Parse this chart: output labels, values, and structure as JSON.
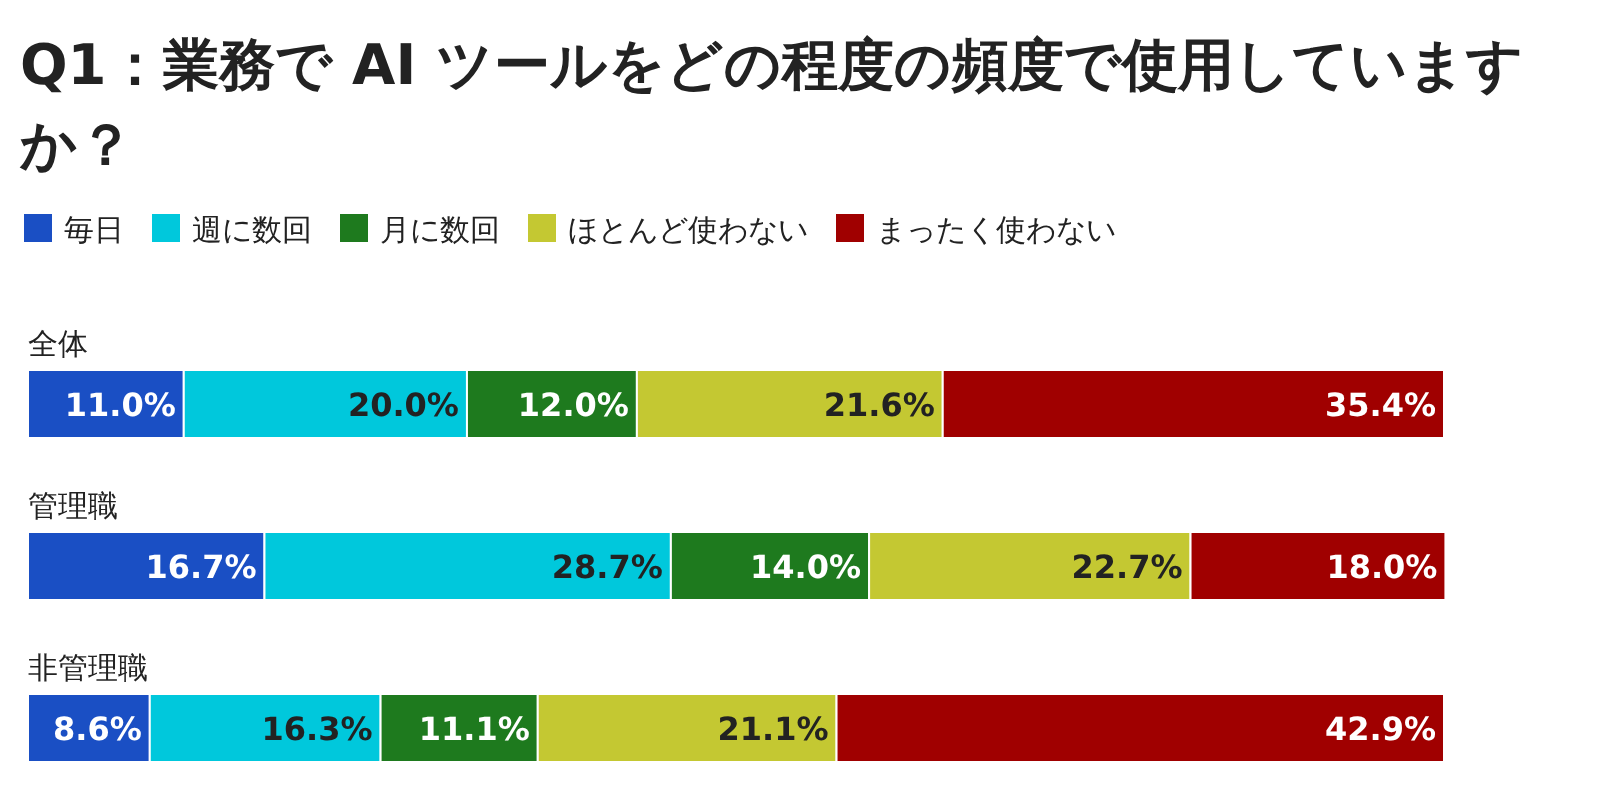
{
  "chart_data": {
    "type": "bar",
    "orientation": "horizontal",
    "stacked": true,
    "title": "Q1：業務で AI ツールをどの程度の頻度で使用していますか？",
    "categories": [
      "全体",
      "管理職",
      "非管理職"
    ],
    "series": [
      {
        "name": "毎日",
        "color": "#1a4fc4",
        "values": [
          11.0,
          16.7,
          8.6
        ],
        "value_labels": [
          "11.0%",
          "16.7%",
          "8.6%"
        ]
      },
      {
        "name": "週に数回",
        "color": "#00c8dc",
        "values": [
          20.0,
          28.7,
          16.3
        ],
        "value_labels": [
          "20.0%",
          "28.7%",
          "16.3%"
        ]
      },
      {
        "name": "月に数回",
        "color": "#1e7a1e",
        "values": [
          12.0,
          14.0,
          11.1
        ],
        "value_labels": [
          "12.0%",
          "14.0%",
          "11.1%"
        ]
      },
      {
        "name": "ほとんど使わない",
        "color": "#c4c832",
        "values": [
          21.6,
          22.7,
          21.1
        ],
        "value_labels": [
          "21.6%",
          "22.7%",
          "21.1%"
        ]
      },
      {
        "name": "まったく使わない",
        "color": "#a00000",
        "values": [
          35.4,
          18.0,
          42.9
        ],
        "value_labels": [
          "35.4%",
          "18.0%",
          "42.9%"
        ]
      }
    ],
    "xlim": [
      0,
      100
    ],
    "legend": "top left"
  }
}
